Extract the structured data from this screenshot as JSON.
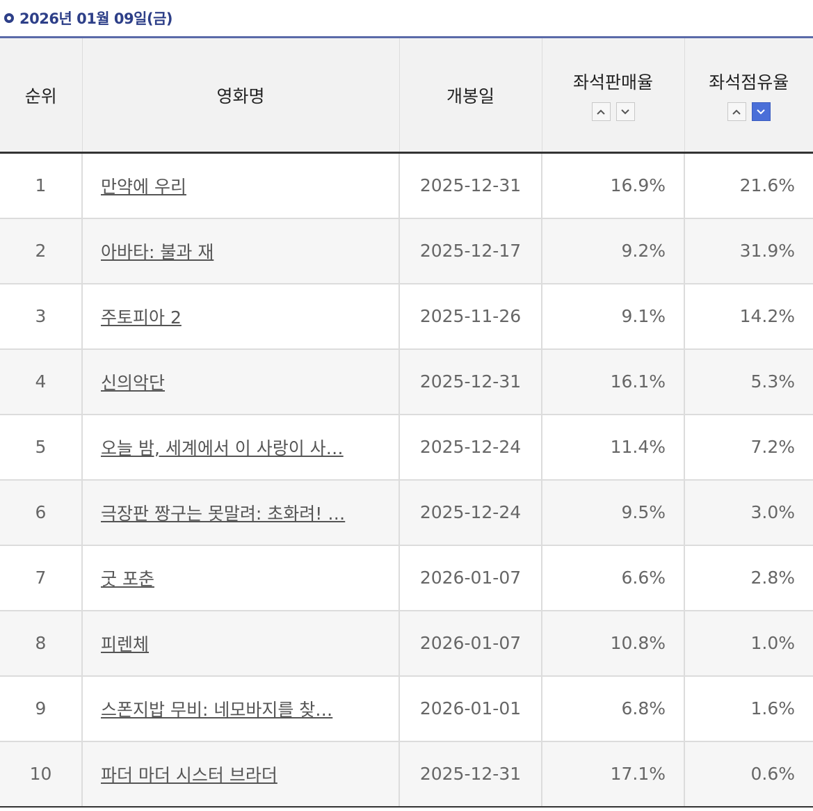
{
  "header": {
    "date": "2026년 01월 09일(금)"
  },
  "columns": {
    "rank": "순위",
    "title": "영화명",
    "release": "개봉일",
    "sales_rate": "좌석판매율",
    "share_rate": "좌석점유율"
  },
  "colors": {
    "accent": "#2d3f88",
    "sort_active": "#4a6fd8"
  },
  "sort": {
    "active_column": "share_rate",
    "active_direction": "desc"
  },
  "rows": [
    {
      "rank": "1",
      "title": "만약에 우리",
      "release": "2025-12-31",
      "sales": "16.9%",
      "share": "21.6%"
    },
    {
      "rank": "2",
      "title": "아바타: 불과 재",
      "release": "2025-12-17",
      "sales": "9.2%",
      "share": "31.9%"
    },
    {
      "rank": "3",
      "title": "주토피아 2",
      "release": "2025-11-26",
      "sales": "9.1%",
      "share": "14.2%"
    },
    {
      "rank": "4",
      "title": "신의악단",
      "release": "2025-12-31",
      "sales": "16.1%",
      "share": "5.3%"
    },
    {
      "rank": "5",
      "title": "오늘 밤, 세계에서 이 사랑이 사…",
      "release": "2025-12-24",
      "sales": "11.4%",
      "share": "7.2%"
    },
    {
      "rank": "6",
      "title": "극장판 짱구는 못말려: 초화려! …",
      "release": "2025-12-24",
      "sales": "9.5%",
      "share": "3.0%"
    },
    {
      "rank": "7",
      "title": "굿 포춘",
      "release": "2026-01-07",
      "sales": "6.6%",
      "share": "2.8%"
    },
    {
      "rank": "8",
      "title": "피렌체",
      "release": "2026-01-07",
      "sales": "10.8%",
      "share": "1.0%"
    },
    {
      "rank": "9",
      "title": "스폰지밥 무비: 네모바지를 찾…",
      "release": "2026-01-01",
      "sales": "6.8%",
      "share": "1.6%"
    },
    {
      "rank": "10",
      "title": "파더 마더 시스터 브라더",
      "release": "2025-12-31",
      "sales": "17.1%",
      "share": "0.6%"
    }
  ]
}
